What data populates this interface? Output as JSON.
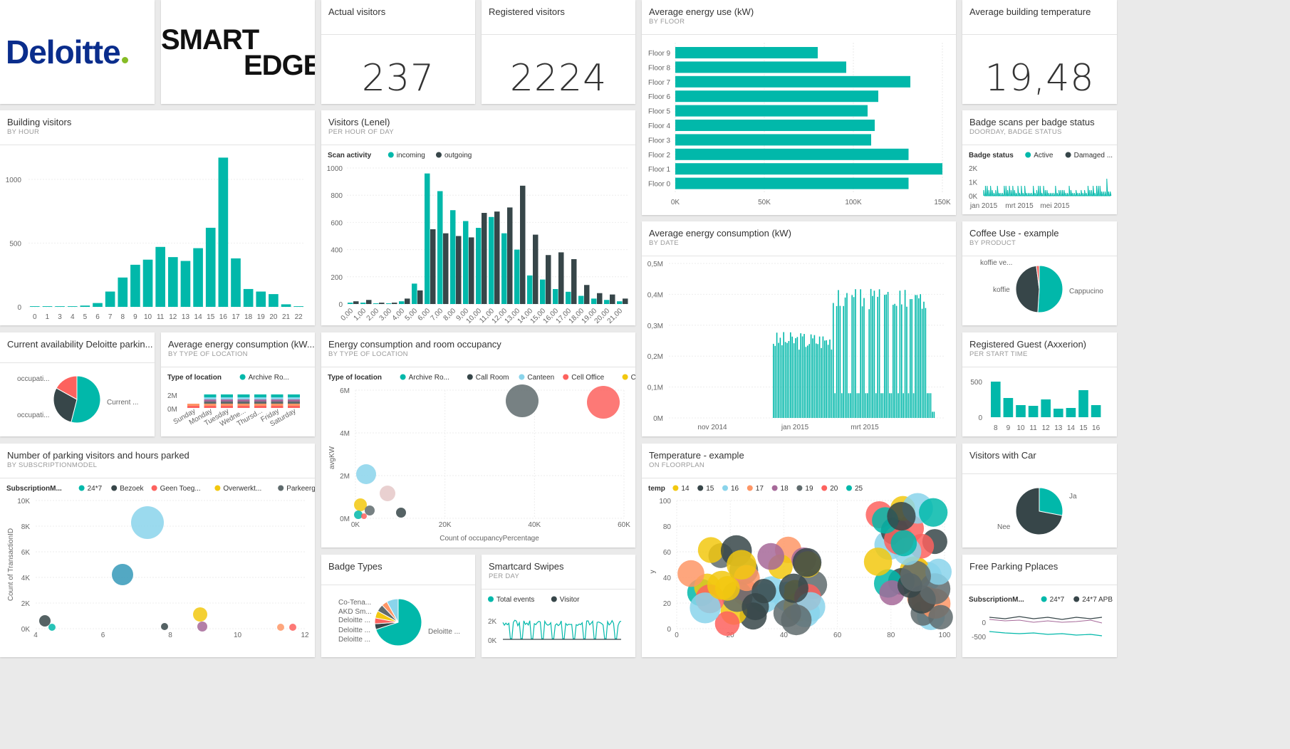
{
  "colors": {
    "teal": "#01b8aa",
    "dark": "#374649",
    "red": "#fd625e",
    "yellow": "#f2c80f",
    "gray": "#5f6b6d",
    "lightblue": "#8ad4eb",
    "orange": "#fe9666",
    "purple": "#a66999",
    "deloitte_blue": "#0a2d8c",
    "deloitte_green": "#86bc25"
  },
  "logos": {
    "deloitte": "Deloitte",
    "smartedge_top": "SMART",
    "smartedge_bottom": "EDGE"
  },
  "kpis": {
    "actual": {
      "title": "Actual visitors",
      "value": "237"
    },
    "registered": {
      "title": "Registered visitors",
      "value": "2224"
    },
    "temperature": {
      "title": "Average building temperature",
      "value": "19,48"
    }
  },
  "energy_floor": {
    "title": "Average energy use (kW)",
    "subtitle": "BY FLOOR",
    "chart_data": {
      "type": "bar",
      "orientation": "horizontal",
      "categories": [
        "Floor 9",
        "Floor 8",
        "Floor 7",
        "Floor 6",
        "Floor 5",
        "Floor 4",
        "Floor 3",
        "Floor 2",
        "Floor 1",
        "Floor 0"
      ],
      "values": [
        80000,
        96000,
        132000,
        114000,
        108000,
        112000,
        110000,
        131000,
        150000,
        131000
      ],
      "xticks": [
        "0K",
        "50K",
        "100K",
        "150K"
      ],
      "xlim": [
        0,
        150000
      ]
    }
  },
  "building_visitors": {
    "title": "Building visitors",
    "subtitle": "BY HOUR",
    "chart_data": {
      "type": "bar",
      "categories": [
        "0",
        "1",
        "3",
        "4",
        "5",
        "6",
        "7",
        "8",
        "9",
        "10",
        "11",
        "12",
        "13",
        "14",
        "15",
        "16",
        "17",
        "18",
        "19",
        "20",
        "21",
        "22"
      ],
      "values": [
        5,
        5,
        5,
        5,
        10,
        30,
        120,
        230,
        330,
        370,
        470,
        390,
        360,
        460,
        620,
        1170,
        380,
        140,
        120,
        100,
        20,
        5
      ],
      "yticks": [
        "0",
        "500",
        "1000"
      ],
      "ylim": [
        0,
        1200
      ]
    }
  },
  "visitors_lenel": {
    "title": "Visitors (Lenel)",
    "subtitle": "PER HOUR OF DAY",
    "legend_title": "Scan activity",
    "legend": [
      "incoming",
      "outgoing"
    ],
    "chart_data": {
      "type": "bar",
      "categories": [
        "0,00",
        "1,00",
        "2,00",
        "3,00",
        "4,00",
        "5,00",
        "6,00",
        "7,00",
        "8,00",
        "9,00",
        "10,00",
        "11,00",
        "12,00",
        "13,00",
        "14,00",
        "15,00",
        "16,00",
        "17,00",
        "18,00",
        "19,00",
        "20,00",
        "21,00"
      ],
      "series": [
        {
          "name": "incoming",
          "values": [
            10,
            10,
            5,
            5,
            20,
            150,
            960,
            830,
            690,
            610,
            560,
            640,
            520,
            400,
            210,
            180,
            110,
            90,
            60,
            40,
            30,
            20
          ]
        },
        {
          "name": "outgoing",
          "values": [
            20,
            30,
            10,
            10,
            40,
            100,
            550,
            520,
            500,
            490,
            670,
            680,
            710,
            870,
            510,
            360,
            380,
            330,
            140,
            80,
            70,
            40
          ]
        }
      ],
      "yticks": [
        "0",
        "200",
        "400",
        "600",
        "800",
        "1000"
      ],
      "ylim": [
        0,
        1000
      ]
    }
  },
  "badge_scans": {
    "title": "Badge scans per badge status",
    "subtitle": "DOORDAY, BADGE STATUS",
    "legend_title": "Badge status",
    "legend": [
      "Active",
      "Damaged ..."
    ],
    "yticks": [
      "0K",
      "1K",
      "2K"
    ],
    "xticks": [
      "jan 2015",
      "mrt 2015",
      "mei 2015"
    ]
  },
  "energy_date": {
    "title": "Average energy consumption (kW)",
    "subtitle": "BY DATE",
    "yticks": [
      "0M",
      "0,1M",
      "0,2M",
      "0,3M",
      "0,4M",
      "0,5M"
    ],
    "xticks": [
      "nov 2014",
      "jan 2015",
      "mrt 2015"
    ]
  },
  "coffee": {
    "title": "Coffee Use - example",
    "subtitle": "BY PRODUCT",
    "chart_data": {
      "type": "pie",
      "labels": [
        "Cappucino",
        "koffie",
        "koffie ve..."
      ],
      "values": [
        51,
        47,
        2
      ]
    }
  },
  "parking_avail": {
    "title": "Current availability Deloitte parkin...",
    "chart_data": {
      "type": "pie",
      "labels": [
        "Current ...",
        "occupati...",
        "occupati..."
      ],
      "values": [
        54,
        29,
        17
      ]
    }
  },
  "energy_type": {
    "title": "Average energy consumption (kW...",
    "subtitle": "BY TYPE OF LOCATION",
    "legend_title": "Type of location",
    "legend": [
      "Archive Ro..."
    ],
    "yticks": [
      "0M",
      "2M"
    ],
    "xticks": [
      "Sunday",
      "Monday",
      "Tuesday",
      "Wedne...",
      "Thursd...",
      "Friday",
      "Saturday"
    ]
  },
  "energy_room": {
    "title": "Energy consumption and room occupancy",
    "subtitle": "BY TYPE OF LOCATION",
    "legend_title": "Type of location",
    "legend": [
      "Archive Ro...",
      "Call Room",
      "Canteen",
      "Cell Office",
      "Central Ar..."
    ],
    "ylabel": "avgKW",
    "xlabel": "Count of occupancyPercentage",
    "yticks": [
      "0M",
      "2M",
      "4M",
      "6M"
    ],
    "xticks": [
      "0K",
      "20K",
      "40K",
      "60K"
    ]
  },
  "registered_guest": {
    "title": "Registered Guest (Axxerion)",
    "subtitle": "PER START TIME",
    "chart_data": {
      "type": "bar",
      "categories": [
        "8",
        "9",
        "10",
        "11",
        "12",
        "13",
        "14",
        "15",
        "16"
      ],
      "values": [
        500,
        270,
        170,
        160,
        250,
        120,
        130,
        380,
        170
      ],
      "yticks": [
        "0",
        "500"
      ],
      "ylim": [
        0,
        600
      ]
    }
  },
  "parking_visitors": {
    "title": "Number of parking visitors and hours parked",
    "subtitle": "BY SUBSCRIPTIONMODEL",
    "legend_title": "SubscriptionM...",
    "legend": [
      "24*7",
      "Bezoek",
      "Geen Toeg...",
      "Overwerkt...",
      "Parkeerger..."
    ],
    "ylabel": "Count of TransactionID",
    "yticks": [
      "0K",
      "2K",
      "4K",
      "6K",
      "8K",
      "10K"
    ],
    "xticks": [
      "4",
      "6",
      "8",
      "10",
      "12"
    ]
  },
  "temperature": {
    "title": "Temperature - example",
    "subtitle": "ON FLOORPLAN",
    "legend_title": "temp",
    "legend": [
      "14",
      "15",
      "16",
      "17",
      "18",
      "19",
      "20",
      "25"
    ],
    "ylabel": "y",
    "yticks": [
      "0",
      "20",
      "40",
      "60",
      "80",
      "100"
    ],
    "xticks": [
      "0",
      "20",
      "40",
      "60",
      "80",
      "100"
    ]
  },
  "visitors_car": {
    "title": "Visitors with Car",
    "chart_data": {
      "type": "pie",
      "labels": [
        "Ja",
        "Nee"
      ],
      "values": [
        28,
        72
      ]
    }
  },
  "badge_types": {
    "title": "Badge Types",
    "labels": [
      "Deloitte ...",
      "Co-Tena...",
      "AKD Sm...",
      "Deloitte ...",
      "Deloitte ...",
      "Deloitte ..."
    ]
  },
  "smartcard": {
    "title": "Smartcard Swipes",
    "subtitle": "PER DAY",
    "legend": [
      "Total events",
      "Visitor"
    ],
    "yticks": [
      "0K",
      "2K"
    ]
  },
  "free_parking": {
    "title": "Free Parking Pplaces",
    "legend_title": "SubscriptionM...",
    "legend": [
      "24*7",
      "24*7 APB"
    ],
    "yticks": [
      "-500",
      "0"
    ]
  }
}
